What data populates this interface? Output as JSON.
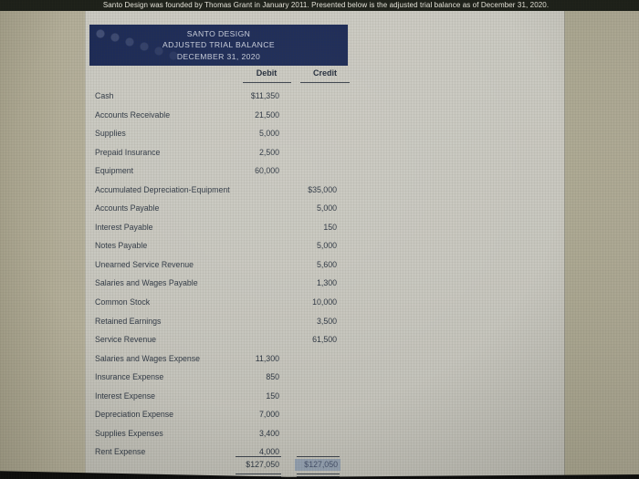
{
  "photo": {
    "intro_text": "Santo Design was founded by Thomas Grant in January 2011. Presented below is the adjusted trial balance as of December 31, 2020."
  },
  "statement": {
    "company": "SANTO DESIGN",
    "title": "ADJUSTED TRIAL BALANCE",
    "date": "DECEMBER 31, 2020"
  },
  "table": {
    "debit_header": "Debit",
    "credit_header": "Credit",
    "rows": [
      {
        "account": "Cash",
        "debit": "$11,350",
        "credit": ""
      },
      {
        "account": "Accounts Receivable",
        "debit": "21,500",
        "credit": ""
      },
      {
        "account": "Supplies",
        "debit": "5,000",
        "credit": ""
      },
      {
        "account": "Prepaid Insurance",
        "debit": "2,500",
        "credit": ""
      },
      {
        "account": "Equipment",
        "debit": "60,000",
        "credit": ""
      },
      {
        "account": "Accumulated Depreciation-Equipment",
        "debit": "",
        "credit": "$35,000"
      },
      {
        "account": "Accounts Payable",
        "debit": "",
        "credit": "5,000"
      },
      {
        "account": "Interest Payable",
        "debit": "",
        "credit": "150"
      },
      {
        "account": "Notes Payable",
        "debit": "",
        "credit": "5,000"
      },
      {
        "account": "Unearned Service Revenue",
        "debit": "",
        "credit": "5,600"
      },
      {
        "account": "Salaries and Wages Payable",
        "debit": "",
        "credit": "1,300"
      },
      {
        "account": "Common Stock",
        "debit": "",
        "credit": "10,000"
      },
      {
        "account": "Retained Earnings",
        "debit": "",
        "credit": "3,500"
      },
      {
        "account": "Service Revenue",
        "debit": "",
        "credit": "61,500"
      },
      {
        "account": "Salaries and Wages Expense",
        "debit": "11,300",
        "credit": ""
      },
      {
        "account": "Insurance Expense",
        "debit": "850",
        "credit": ""
      },
      {
        "account": "Interest Expense",
        "debit": "150",
        "credit": ""
      },
      {
        "account": "Depreciation Expense",
        "debit": "7,000",
        "credit": ""
      },
      {
        "account": "Supplies Expenses",
        "debit": "3,400",
        "credit": ""
      },
      {
        "account": "Rent Expense",
        "debit": "4,000",
        "credit": ""
      }
    ],
    "totals": {
      "debit": "$127,050",
      "credit": "$127,050"
    }
  },
  "colors": {
    "header_navy": "#1c2a56",
    "top_strip_bg": "#1d2019",
    "page_bg": "#c8c7bf",
    "surround_bg": "#b3ae99",
    "text_dark": "#2d3642",
    "selection_highlight": "#95a2b2",
    "bezel_black": "#0b0b0b"
  }
}
